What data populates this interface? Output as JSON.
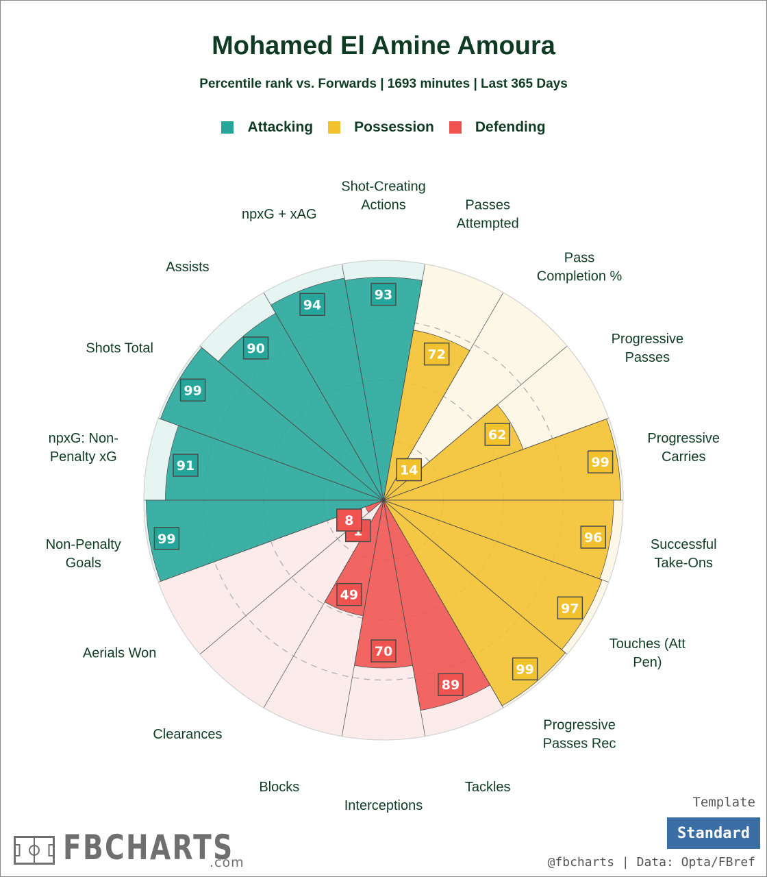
{
  "chart_data": {
    "type": "polar-bar",
    "title": "Mohamed El Amine Amoura",
    "subtitle": "Percentile rank vs. Forwards | 1693 minutes | Last 365 Days",
    "legend": [
      {
        "name": "Attacking",
        "color": "#26a69a"
      },
      {
        "name": "Possession",
        "color": "#f2c12e"
      },
      {
        "name": "Defending",
        "color": "#ef5350"
      }
    ],
    "range": [
      0,
      100
    ],
    "metrics": [
      {
        "label": "Shot-Creating Actions",
        "lines": [
          "Shot-Creating",
          "Actions"
        ],
        "value": 93,
        "group": "Attacking"
      },
      {
        "label": "Passes Attempted",
        "lines": [
          "Passes",
          "Attempted"
        ],
        "value": 72,
        "group": "Possession"
      },
      {
        "label": "Pass Completion %",
        "lines": [
          "Pass",
          "Completion %"
        ],
        "value": 14,
        "group": "Possession"
      },
      {
        "label": "Progressive Passes",
        "lines": [
          "Progressive",
          "Passes"
        ],
        "value": 62,
        "group": "Possession"
      },
      {
        "label": "Progressive Carries",
        "lines": [
          "Progressive",
          "Carries"
        ],
        "value": 99,
        "group": "Possession"
      },
      {
        "label": "Successful Take-Ons",
        "lines": [
          "Successful",
          "Take-Ons"
        ],
        "value": 96,
        "group": "Possession"
      },
      {
        "label": "Touches (Att Pen)",
        "lines": [
          "Touches (Att",
          "Pen)"
        ],
        "value": 97,
        "group": "Possession"
      },
      {
        "label": "Progressive Passes Rec",
        "lines": [
          "Progressive",
          "Passes Rec"
        ],
        "value": 99,
        "group": "Possession"
      },
      {
        "label": "Tackles",
        "lines": [
          "Tackles"
        ],
        "value": 89,
        "group": "Defending"
      },
      {
        "label": "Interceptions",
        "lines": [
          "Interceptions"
        ],
        "value": 70,
        "group": "Defending"
      },
      {
        "label": "Blocks",
        "lines": [
          "Blocks"
        ],
        "value": 49,
        "group": "Defending"
      },
      {
        "label": "Clearances",
        "lines": [
          "Clearances"
        ],
        "value": 1,
        "group": "Defending"
      },
      {
        "label": "Aerials Won",
        "lines": [
          "Aerials Won"
        ],
        "value": 8,
        "group": "Defending"
      },
      {
        "label": "Non-Penalty Goals",
        "lines": [
          "Non-Penalty",
          "Goals"
        ],
        "value": 99,
        "group": "Attacking"
      },
      {
        "label": "npxG: Non-Penalty xG",
        "lines": [
          "npxG: Non-",
          "Penalty xG"
        ],
        "value": 91,
        "group": "Attacking"
      },
      {
        "label": "Shots Total",
        "lines": [
          "Shots Total"
        ],
        "value": 99,
        "group": "Attacking"
      },
      {
        "label": "Assists",
        "lines": [
          "Assists"
        ],
        "value": 90,
        "group": "Attacking"
      },
      {
        "label": "npxG + xAG",
        "lines": [
          "npxG + xAG"
        ],
        "value": 94,
        "group": "Attacking"
      }
    ]
  },
  "footer": {
    "logo": "FBCHARTS",
    "logo_suffix": ".com",
    "template_label": "Template",
    "template_button": "Standard",
    "credit": "@fbcharts | Data: Opta/FBref"
  }
}
